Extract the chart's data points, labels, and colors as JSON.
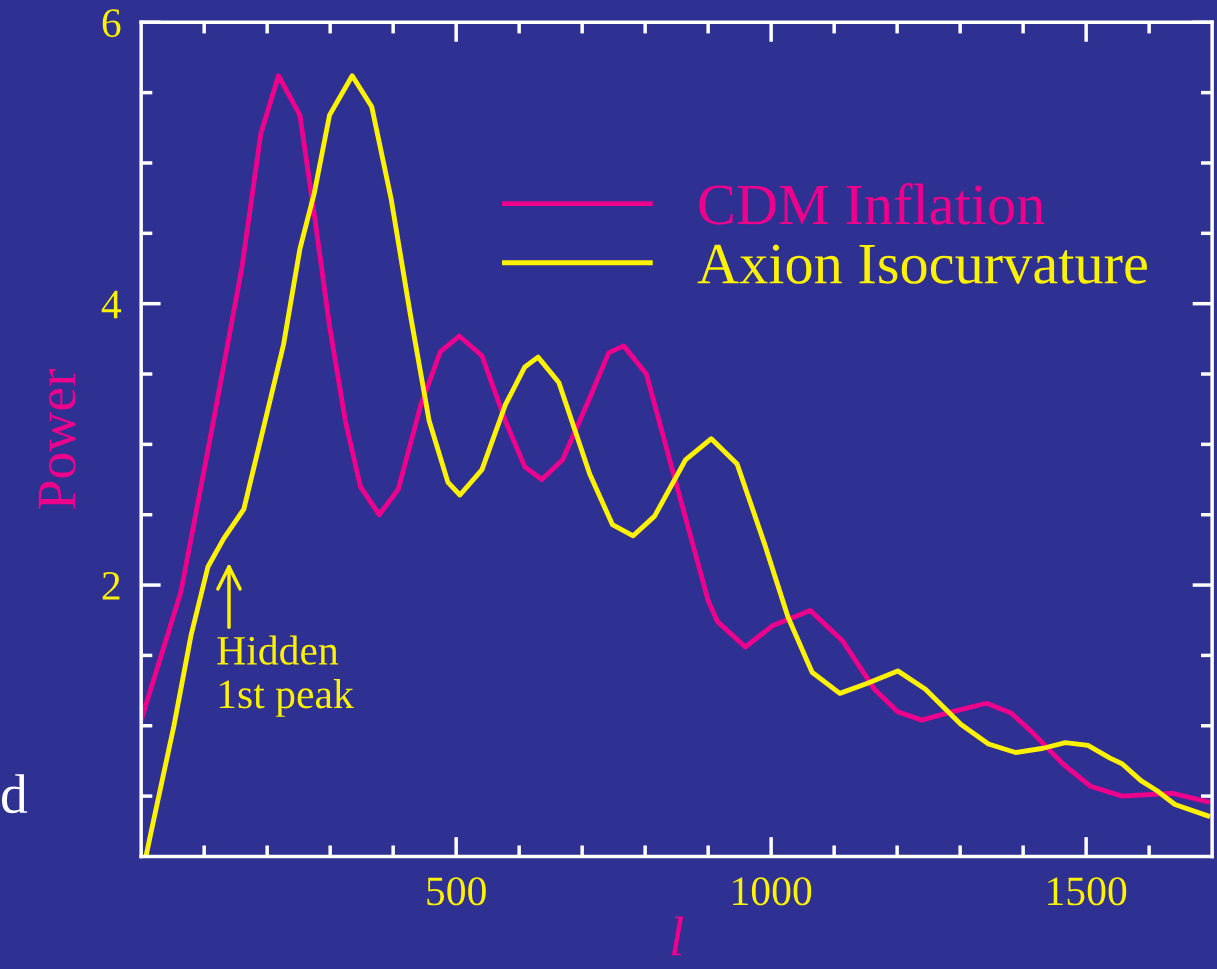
{
  "chart_data": {
    "type": "line",
    "xlabel": "l",
    "ylabel": "Power",
    "x": [
      0,
      63,
      106,
      117,
      160,
      190,
      218,
      252,
      275,
      299,
      324,
      348,
      378,
      408,
      444,
      475,
      505,
      541,
      578,
      609,
      636,
      669,
      712,
      742,
      766,
      802,
      845,
      875,
      900,
      915,
      959,
      1002,
      1062,
      1114,
      1164,
      1201,
      1239,
      1288,
      1342,
      1381,
      1413,
      1463,
      1507,
      1557,
      1638,
      1693
    ],
    "series": [
      {
        "name": "CDM Inflation",
        "color": "#ec008c",
        "values": [
          1.04,
          1.95,
          2.96,
          3.22,
          4.26,
          5.21,
          5.62,
          5.34,
          4.63,
          3.84,
          3.17,
          2.7,
          2.5,
          2.68,
          3.28,
          3.66,
          3.77,
          3.63,
          3.17,
          2.84,
          2.75,
          2.89,
          3.33,
          3.65,
          3.7,
          3.5,
          2.79,
          2.3,
          1.89,
          1.74,
          1.56,
          1.71,
          1.82,
          1.6,
          1.26,
          1.1,
          1.04,
          1.1,
          1.16,
          1.09,
          0.96,
          0.73,
          0.57,
          0.5,
          0.52,
          0.46
        ]
      },
      {
        "name": "Axion Isocurvature",
        "color": "#fff200",
        "x": [
          8,
          16,
          52,
          79,
          106,
          131,
          163,
          226,
          252,
          275,
          299,
          335,
          366,
          397,
          427,
          457,
          487,
          506,
          541,
          578,
          609,
          630,
          663,
          712,
          748,
          781,
          815,
          864,
          905,
          946,
          989,
          1027,
          1065,
          1109,
          1152,
          1201,
          1245,
          1301,
          1345,
          1388,
          1432,
          1467,
          1503,
          1538,
          1557,
          1587,
          1612,
          1641,
          1693
        ],
        "values": [
          0.08,
          0.25,
          1.0,
          1.64,
          2.13,
          2.33,
          2.54,
          3.71,
          4.39,
          4.79,
          5.34,
          5.62,
          5.4,
          4.74,
          3.93,
          3.17,
          2.73,
          2.64,
          2.82,
          3.28,
          3.55,
          3.62,
          3.44,
          2.79,
          2.43,
          2.35,
          2.49,
          2.89,
          3.04,
          2.86,
          2.3,
          1.77,
          1.38,
          1.23,
          1.3,
          1.39,
          1.26,
          1.01,
          0.87,
          0.81,
          0.84,
          0.88,
          0.86,
          0.77,
          0.73,
          0.61,
          0.54,
          0.44,
          0.36
        ]
      }
    ],
    "xlim": [
      0,
      1700
    ],
    "xticks": [
      {
        "value": 100,
        "label": null
      },
      {
        "value": 200,
        "label": null
      },
      {
        "value": 300,
        "label": null
      },
      {
        "value": 400,
        "label": null
      },
      500,
      {
        "value": 600,
        "label": null
      },
      {
        "value": 700,
        "label": null
      },
      {
        "value": 800,
        "label": null
      },
      {
        "value": 900,
        "label": null
      },
      1000,
      {
        "value": 1100,
        "label": null
      },
      {
        "value": 1200,
        "label": null
      },
      {
        "value": 1300,
        "label": null
      },
      {
        "value": 1400,
        "label": null
      },
      1500,
      {
        "value": 1600,
        "label": null
      }
    ],
    "ylim": [
      0.07,
      6
    ],
    "yticks": [
      {
        "value": 0.5,
        "label": null
      },
      {
        "value": 1,
        "label": null
      },
      {
        "value": 1.5,
        "label": null
      },
      2,
      {
        "value": 2.5,
        "label": null
      },
      {
        "value": 3,
        "label": null
      },
      {
        "value": 3.5,
        "label": null
      },
      4,
      {
        "value": 4.5,
        "label": null
      },
      {
        "value": 5,
        "label": null
      },
      {
        "value": 5.5,
        "label": null
      },
      6
    ],
    "annotations": [
      "Hidden\n1st peak",
      "d"
    ],
    "legend": "top right",
    "grid": false,
    "marker": "none",
    "line_style": "solid"
  }
}
